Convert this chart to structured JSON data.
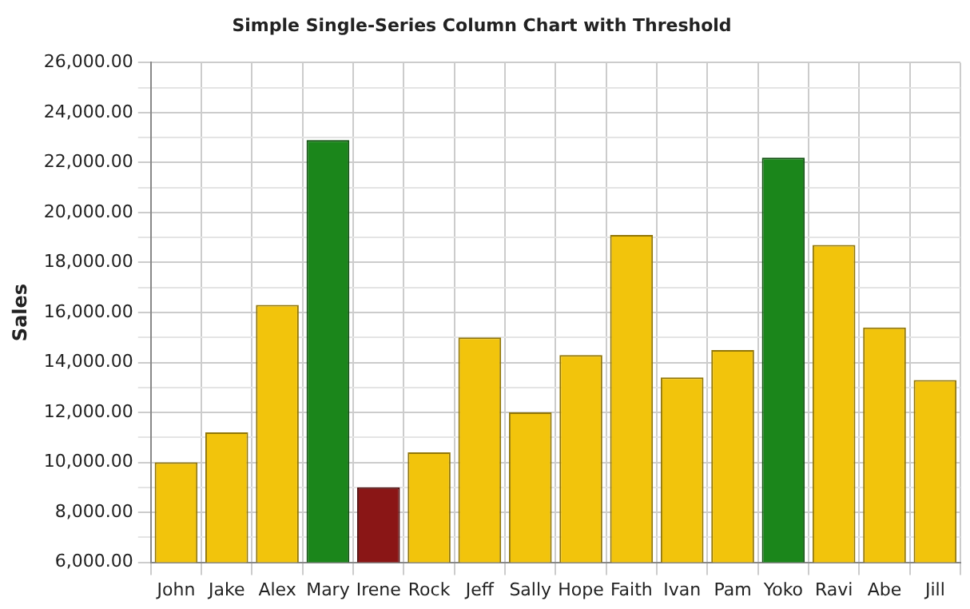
{
  "chart_data": {
    "type": "bar",
    "title": "Simple Single-Series Column Chart with Threshold",
    "ylabel": "Sales",
    "categories": [
      "John",
      "Jake",
      "Alex",
      "Mary",
      "Irene",
      "Rock",
      "Jeff",
      "Sally",
      "Hope",
      "Faith",
      "Ivan",
      "Pam",
      "Yoko",
      "Ravi",
      "Abe",
      "Jill"
    ],
    "values": [
      10000,
      11200,
      16300,
      22900,
      9000,
      10400,
      15000,
      12000,
      14300,
      19100,
      13400,
      14500,
      22200,
      18700,
      15400,
      13300
    ],
    "colors": [
      "#f2c40c",
      "#f2c40c",
      "#f2c40c",
      "#1b861b",
      "#8a1616",
      "#f2c40c",
      "#f2c40c",
      "#f2c40c",
      "#f2c40c",
      "#f2c40c",
      "#f2c40c",
      "#f2c40c",
      "#1b861b",
      "#f2c40c",
      "#f2c40c",
      "#f2c40c"
    ],
    "ylim": [
      6000,
      26000
    ],
    "yticks": [
      {
        "value": 6000,
        "label": "6,000.00"
      },
      {
        "value": 7000,
        "label": null
      },
      {
        "value": 8000,
        "label": "8,000.00"
      },
      {
        "value": 9000,
        "label": null
      },
      {
        "value": 10000,
        "label": "10,000.00"
      },
      {
        "value": 11000,
        "label": null
      },
      {
        "value": 12000,
        "label": "12,000.00"
      },
      {
        "value": 13000,
        "label": null
      },
      {
        "value": 14000,
        "label": "14,000.00"
      },
      {
        "value": 15000,
        "label": null
      },
      {
        "value": 16000,
        "label": "16,000.00"
      },
      {
        "value": 17000,
        "label": null
      },
      {
        "value": 18000,
        "label": "18,000.00"
      },
      {
        "value": 19000,
        "label": null
      },
      {
        "value": 20000,
        "label": "20,000.00"
      },
      {
        "value": 21000,
        "label": null
      },
      {
        "value": 22000,
        "label": "22,000.00"
      },
      {
        "value": 23000,
        "label": null
      },
      {
        "value": 24000,
        "label": "24,000.00"
      },
      {
        "value": 25000,
        "label": null
      },
      {
        "value": 26000,
        "label": "26,000.00"
      }
    ],
    "grid": true,
    "legend": false
  }
}
